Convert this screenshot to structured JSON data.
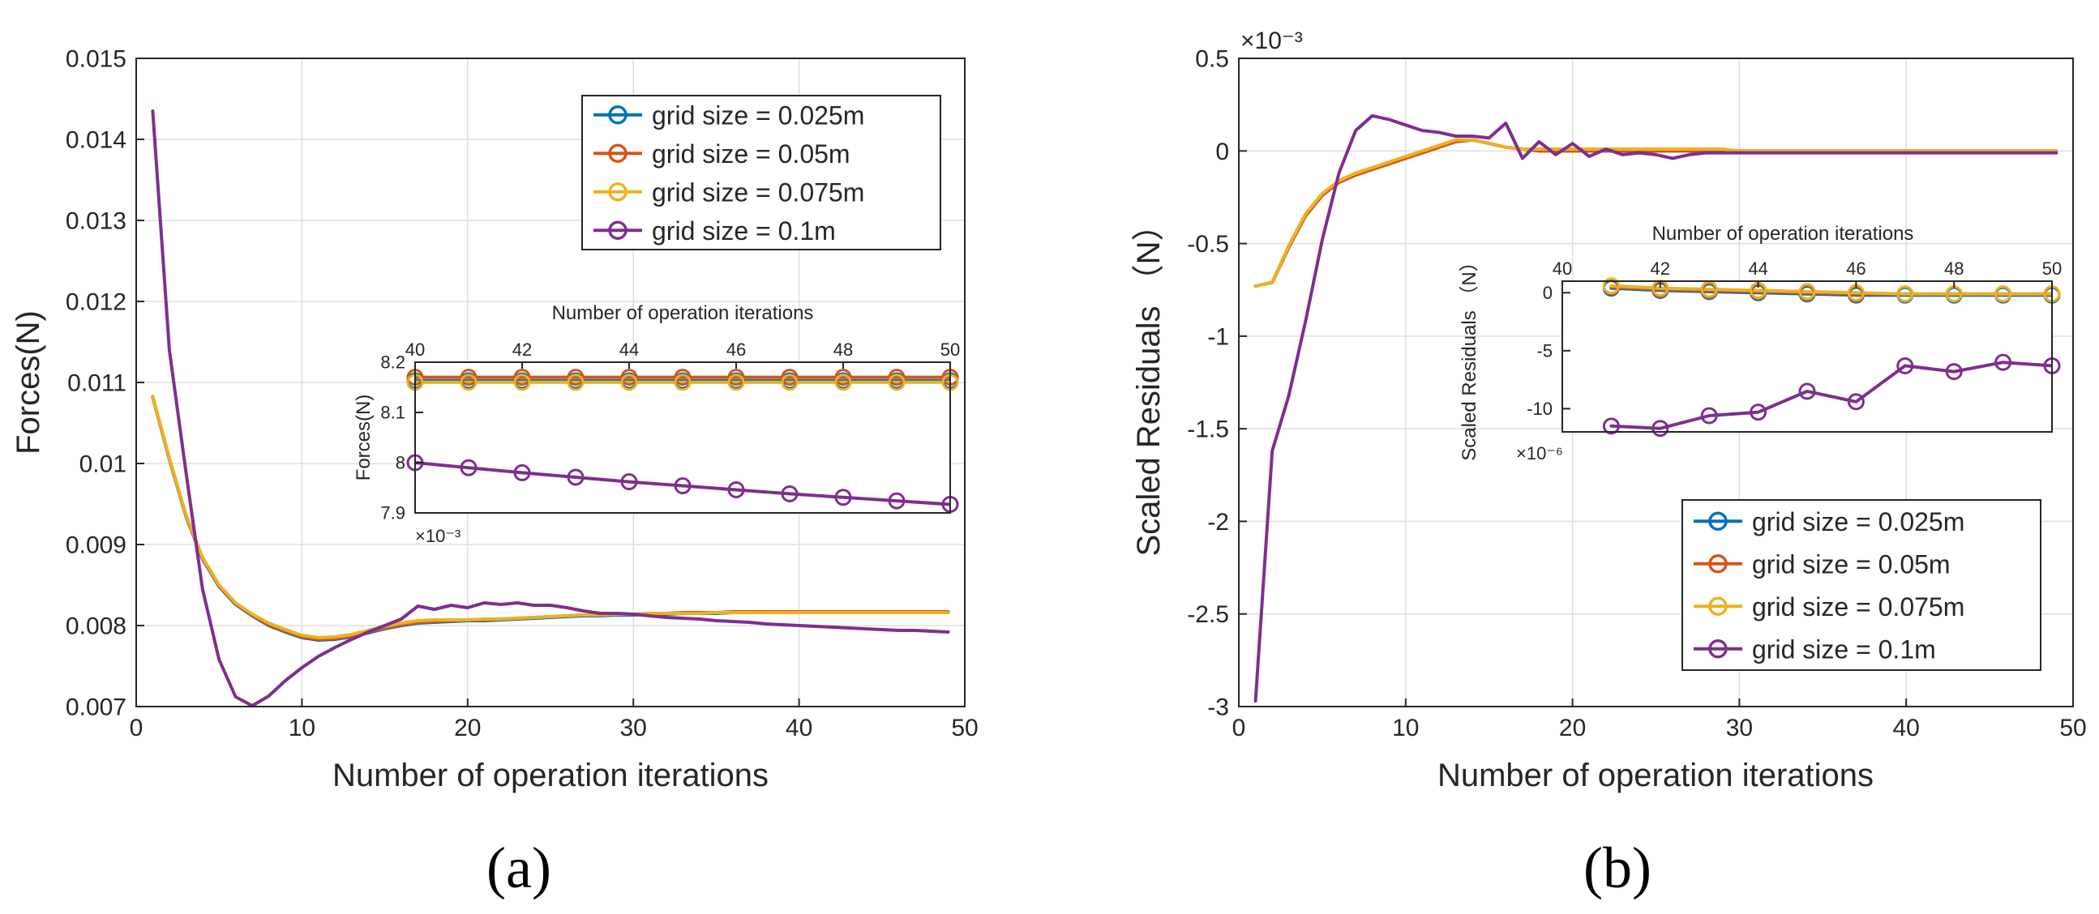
{
  "colors": {
    "s1": "#0072BD",
    "s2": "#D95319",
    "s3": "#EDB120",
    "s4": "#7E2F8E"
  },
  "panel_labels": [
    "(a)",
    "(b)"
  ],
  "chart_data": [
    {
      "id": "a-main",
      "type": "line",
      "title": "",
      "xlabel": "Number of operation iterations",
      "ylabel": "Forces(N)",
      "xlim": [
        0,
        50
      ],
      "ylim": [
        0.007,
        0.015
      ],
      "xticks": [
        0,
        10,
        20,
        30,
        40,
        50
      ],
      "xtick_labels": [
        "0",
        "10",
        "20",
        "30",
        "40",
        "50"
      ],
      "yticks": [
        0.007,
        0.008,
        0.009,
        0.01,
        0.011,
        0.012,
        0.013,
        0.014,
        0.015
      ],
      "ytick_labels": [
        "0.007",
        "0.008",
        "0.009",
        "0.01",
        "0.011",
        "0.012",
        "0.013",
        "0.014",
        "0.015"
      ],
      "grid": true,
      "legend_position": "top-right",
      "x": [
        1,
        2,
        3,
        4,
        5,
        6,
        7,
        8,
        9,
        10,
        11,
        12,
        13,
        14,
        15,
        16,
        17,
        18,
        19,
        20,
        21,
        22,
        23,
        24,
        25,
        26,
        27,
        28,
        29,
        30,
        31,
        32,
        33,
        34,
        35,
        36,
        37,
        38,
        39,
        40,
        41,
        42,
        43,
        44,
        45,
        46,
        47,
        48,
        49
      ],
      "series": [
        {
          "name": "grid size = 0.025m",
          "color": "#0072BD",
          "values": [
            0.01082,
            0.01005,
            0.00935,
            0.00882,
            0.00848,
            0.00826,
            0.00812,
            0.008,
            0.00792,
            0.00785,
            0.00782,
            0.00783,
            0.00786,
            0.00791,
            0.00796,
            0.008,
            0.00803,
            0.00804,
            0.00805,
            0.00806,
            0.00806,
            0.00807,
            0.00808,
            0.00809,
            0.0081,
            0.00811,
            0.00812,
            0.00812,
            0.00813,
            0.00813,
            0.00814,
            0.00814,
            0.00815,
            0.00815,
            0.00815,
            0.00816,
            0.00816,
            0.00816,
            0.00816,
            0.00816,
            0.00816,
            0.00816,
            0.00816,
            0.00816,
            0.00816,
            0.00816,
            0.00816,
            0.00816,
            0.00816
          ]
        },
        {
          "name": "grid size = 0.05m",
          "color": "#D95319",
          "values": [
            0.01082,
            0.01006,
            0.00936,
            0.00883,
            0.00849,
            0.00827,
            0.00813,
            0.00801,
            0.00793,
            0.00786,
            0.00783,
            0.00784,
            0.00787,
            0.00792,
            0.00797,
            0.00801,
            0.00804,
            0.00805,
            0.00806,
            0.00807,
            0.00807,
            0.00808,
            0.00809,
            0.0081,
            0.00811,
            0.00812,
            0.00813,
            0.00813,
            0.00814,
            0.00814,
            0.00815,
            0.00815,
            0.00816,
            0.00816,
            0.00816,
            0.00817,
            0.00817,
            0.00817,
            0.00817,
            0.00817,
            0.00817,
            0.00817,
            0.00817,
            0.00817,
            0.00817,
            0.00817,
            0.00817,
            0.00817,
            0.00817
          ]
        },
        {
          "name": "grid size = 0.075m",
          "color": "#EDB120",
          "values": [
            0.01083,
            0.01007,
            0.00937,
            0.00884,
            0.0085,
            0.00828,
            0.00814,
            0.00803,
            0.00795,
            0.00788,
            0.00785,
            0.00786,
            0.00789,
            0.00794,
            0.00799,
            0.00803,
            0.00806,
            0.00807,
            0.00807,
            0.00807,
            0.00808,
            0.00808,
            0.00809,
            0.0081,
            0.00811,
            0.00812,
            0.00813,
            0.00813,
            0.00814,
            0.00814,
            0.00815,
            0.00815,
            0.00815,
            0.00815,
            0.00816,
            0.00816,
            0.00816,
            0.00816,
            0.00816,
            0.00816,
            0.00816,
            0.00816,
            0.00816,
            0.00816,
            0.00816,
            0.00816,
            0.00816,
            0.00816,
            0.00816
          ]
        },
        {
          "name": "grid size = 0.1m",
          "color": "#7E2F8E",
          "values": [
            0.01435,
            0.0114,
            0.0099,
            0.00845,
            0.00758,
            0.00712,
            0.00701,
            0.00713,
            0.00732,
            0.00748,
            0.00762,
            0.00773,
            0.00783,
            0.00792,
            0.008,
            0.00808,
            0.00824,
            0.0082,
            0.00825,
            0.00822,
            0.00828,
            0.00826,
            0.00828,
            0.00825,
            0.00825,
            0.00822,
            0.00818,
            0.00815,
            0.00815,
            0.00814,
            0.00812,
            0.0081,
            0.00809,
            0.00808,
            0.00806,
            0.00805,
            0.00804,
            0.00802,
            0.00801,
            0.008,
            0.00799,
            0.00798,
            0.00797,
            0.00796,
            0.00795,
            0.00794,
            0.00794,
            0.00793,
            0.00792
          ]
        }
      ]
    },
    {
      "id": "a-inset",
      "type": "line",
      "title": "",
      "xlabel": "Number of operation iterations",
      "ylabel": "Forces(N)",
      "xlim": [
        40,
        50
      ],
      "ylim": [
        7.9,
        8.2
      ],
      "y_multiplier": "×10⁻³",
      "xticks": [
        40,
        42,
        44,
        46,
        48,
        50
      ],
      "xtick_labels": [
        "40",
        "42",
        "44",
        "46",
        "48",
        "50"
      ],
      "yticks": [
        7.9,
        8.0,
        8.1,
        8.2
      ],
      "ytick_labels": [
        "7.9",
        "8",
        "8.1",
        "8.2"
      ],
      "grid": false,
      "x": [
        40,
        41,
        42,
        43,
        44,
        45,
        46,
        47,
        48,
        49,
        50
      ],
      "series": [
        {
          "name": "grid size = 0.025m",
          "color": "#0072BD",
          "values": [
            8.163,
            8.163,
            8.163,
            8.163,
            8.163,
            8.163,
            8.163,
            8.163,
            8.163,
            8.163,
            8.163
          ]
        },
        {
          "name": "grid size = 0.05m",
          "color": "#D95319",
          "values": [
            8.17,
            8.17,
            8.17,
            8.17,
            8.17,
            8.17,
            8.17,
            8.17,
            8.17,
            8.17,
            8.17
          ]
        },
        {
          "name": "grid size = 0.075m",
          "color": "#EDB120",
          "values": [
            8.16,
            8.16,
            8.16,
            8.16,
            8.16,
            8.16,
            8.16,
            8.16,
            8.16,
            8.16,
            8.16
          ]
        },
        {
          "name": "grid size = 0.1m",
          "color": "#7E2F8E",
          "values": [
            8.0,
            7.99,
            7.98,
            7.971,
            7.962,
            7.954,
            7.946,
            7.938,
            7.931,
            7.924,
            7.917
          ]
        }
      ]
    },
    {
      "id": "b-main",
      "type": "line",
      "title": "",
      "xlabel": "Number of operation iterations",
      "ylabel": "Scaled Residuals （N）",
      "xlim": [
        0,
        50
      ],
      "ylim": [
        -3,
        0.5
      ],
      "y_multiplier": "×10⁻³",
      "xticks": [
        0,
        10,
        20,
        30,
        40,
        50
      ],
      "xtick_labels": [
        "0",
        "10",
        "20",
        "30",
        "40",
        "50"
      ],
      "yticks": [
        -3,
        -2.5,
        -2,
        -1.5,
        -1,
        -0.5,
        0,
        0.5
      ],
      "ytick_labels": [
        "-3",
        "-2.5",
        "-2",
        "-1.5",
        "-1",
        "-0.5",
        "0",
        "0.5"
      ],
      "grid": true,
      "legend_position": "bottom-right",
      "x": [
        1,
        2,
        3,
        4,
        5,
        6,
        7,
        8,
        9,
        10,
        11,
        12,
        13,
        14,
        15,
        16,
        17,
        18,
        19,
        20,
        21,
        22,
        23,
        24,
        25,
        26,
        27,
        28,
        29,
        30,
        31,
        32,
        33,
        34,
        35,
        36,
        37,
        38,
        39,
        40,
        41,
        42,
        43,
        44,
        45,
        46,
        47,
        48,
        49
      ],
      "series": [
        {
          "name": "grid size = 0.025m",
          "color": "#0072BD",
          "values": [
            -0.73,
            -0.71,
            -0.52,
            -0.35,
            -0.24,
            -0.17,
            -0.13,
            -0.1,
            -0.07,
            -0.04,
            -0.01,
            0.02,
            0.05,
            0.06,
            0.04,
            0.02,
            0.01,
            0.0,
            0.0,
            0.0,
            0.0,
            0.0,
            0.0,
            0.0,
            0.0,
            0.0,
            0.0,
            0.0,
            0.0,
            0.0,
            0.0,
            0.0,
            0.0,
            0.0,
            0.0,
            0.0,
            0.0,
            0.0,
            0.0,
            0.0,
            0.0,
            0.0,
            0.0,
            0.0,
            0.0,
            0.0,
            0.0,
            0.0,
            0.0
          ]
        },
        {
          "name": "grid size = 0.05m",
          "color": "#D95319",
          "values": [
            -0.73,
            -0.71,
            -0.52,
            -0.35,
            -0.24,
            -0.17,
            -0.13,
            -0.1,
            -0.07,
            -0.04,
            -0.01,
            0.02,
            0.05,
            0.06,
            0.04,
            0.02,
            0.01,
            0.0,
            0.0,
            0.0,
            0.0,
            0.0,
            0.0,
            0.0,
            0.0,
            0.0,
            0.0,
            0.0,
            0.0,
            0.0,
            0.0,
            0.0,
            0.0,
            0.0,
            0.0,
            0.0,
            0.0,
            0.0,
            0.0,
            0.0,
            0.0,
            0.0,
            0.0,
            0.0,
            0.0,
            0.0,
            0.0,
            0.0,
            0.0
          ]
        },
        {
          "name": "grid size = 0.075m",
          "color": "#EDB120",
          "values": [
            -0.73,
            -0.71,
            -0.51,
            -0.34,
            -0.23,
            -0.16,
            -0.12,
            -0.09,
            -0.06,
            -0.03,
            0.0,
            0.03,
            0.06,
            0.06,
            0.04,
            0.02,
            0.01,
            0.01,
            0.01,
            0.01,
            0.01,
            0.01,
            0.01,
            0.01,
            0.01,
            0.01,
            0.01,
            0.01,
            0.01,
            0.0,
            0.0,
            0.0,
            0.0,
            0.0,
            0.0,
            0.0,
            0.0,
            0.0,
            0.0,
            0.0,
            0.0,
            0.0,
            0.0,
            0.0,
            0.0,
            0.0,
            0.0,
            0.0,
            0.0
          ]
        },
        {
          "name": "grid size = 0.1m",
          "color": "#7E2F8E",
          "values": [
            -2.97,
            -1.62,
            -1.32,
            -0.92,
            -0.48,
            -0.12,
            0.11,
            0.19,
            0.17,
            0.14,
            0.11,
            0.1,
            0.08,
            0.08,
            0.07,
            0.15,
            -0.04,
            0.05,
            -0.02,
            0.04,
            -0.03,
            0.01,
            -0.02,
            -0.01,
            -0.02,
            -0.04,
            -0.02,
            -0.01,
            -0.01,
            -0.01,
            -0.01,
            -0.01,
            -0.01,
            -0.01,
            -0.01,
            -0.01,
            -0.01,
            -0.01,
            -0.01,
            -0.01,
            -0.01,
            -0.01,
            -0.01,
            -0.01,
            -0.01,
            -0.01,
            -0.01,
            -0.01,
            -0.01
          ]
        }
      ]
    },
    {
      "id": "b-inset",
      "type": "line",
      "title": "",
      "xlabel": "Number of operation iterations",
      "ylabel": "Scaled Residuals （N）",
      "xlim": [
        40,
        50
      ],
      "ylim": [
        -12,
        1
      ],
      "y_multiplier": "×10⁻⁶",
      "xticks": [
        40,
        42,
        44,
        46,
        48,
        50
      ],
      "xtick_labels": [
        "40",
        "42",
        "44",
        "46",
        "48",
        "50"
      ],
      "yticks": [
        -10,
        -5,
        0
      ],
      "ytick_labels": [
        "-10",
        "-5",
        "0"
      ],
      "grid": false,
      "x": [
        41,
        42,
        43,
        44,
        45,
        46,
        47,
        48,
        49,
        50
      ],
      "series": [
        {
          "name": "grid size = 0.025m",
          "color": "#0072BD",
          "values": [
            0.4,
            0.2,
            0.1,
            0.0,
            -0.1,
            -0.2,
            -0.2,
            -0.2,
            -0.2,
            -0.2
          ]
        },
        {
          "name": "grid size = 0.05m",
          "color": "#D95319",
          "values": [
            0.5,
            0.3,
            0.2,
            0.1,
            0.0,
            -0.1,
            -0.1,
            -0.1,
            -0.1,
            -0.1
          ]
        },
        {
          "name": "grid size = 0.075m",
          "color": "#EDB120",
          "values": [
            0.6,
            0.4,
            0.3,
            0.2,
            0.1,
            0.0,
            -0.1,
            -0.1,
            -0.1,
            -0.1
          ]
        },
        {
          "name": "grid size = 0.1m",
          "color": "#7E2F8E",
          "values": [
            -11.5,
            -11.7,
            -10.6,
            -10.3,
            -8.5,
            -9.4,
            -6.3,
            -6.8,
            -6.0,
            -6.3
          ]
        }
      ]
    }
  ]
}
